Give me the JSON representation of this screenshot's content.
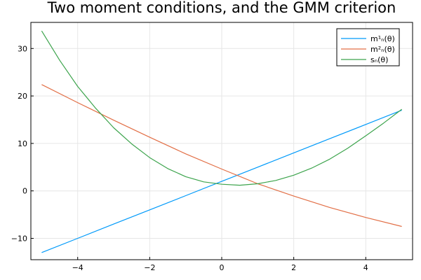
{
  "chart_data": {
    "type": "line",
    "title": "Two moment conditions, and the GMM criterion",
    "xlabel": "",
    "ylabel": "",
    "xlim": [
      -5.3,
      5.3
    ],
    "ylim": [
      -14.5,
      35.5
    ],
    "x_ticks": [
      -4,
      -2,
      0,
      2,
      4
    ],
    "x_tick_labels": [
      "−4",
      "−2",
      "0",
      "2",
      "4"
    ],
    "y_ticks": [
      -10,
      0,
      10,
      20,
      30
    ],
    "y_tick_labels": [
      "−10",
      "0",
      "10",
      "20",
      "30"
    ],
    "grid": true,
    "legend_position": "top-right",
    "series": [
      {
        "name": "m¹ₙ(θ)",
        "color": "#009AFA",
        "x": [
          -5,
          -4,
          -3,
          -2,
          -1,
          0,
          1,
          2,
          3,
          4,
          5
        ],
        "y": [
          -13,
          -10,
          -7,
          -4,
          -1,
          2,
          5,
          8,
          11,
          14,
          17
        ]
      },
      {
        "name": "m²ₙ(θ)",
        "color": "#E26F46",
        "x": [
          -5,
          -4,
          -3,
          -2,
          -1,
          0,
          1,
          2,
          3,
          4,
          5
        ],
        "y": [
          22.4,
          18.6,
          14.9,
          11.3,
          7.8,
          4.6,
          1.5,
          -1.1,
          -3.5,
          -5.6,
          -7.5
        ]
      },
      {
        "name": "sₙ(θ)",
        "color": "#3DA44D",
        "x": [
          -5,
          -4.5,
          -4,
          -3.5,
          -3,
          -2.5,
          -2,
          -1.5,
          -1,
          -0.5,
          0,
          0.5,
          1,
          1.5,
          2,
          2.5,
          3,
          3.5,
          4,
          4.5,
          5
        ],
        "y": [
          33.7,
          27.5,
          22.0,
          17.4,
          13.3,
          9.9,
          7.0,
          4.7,
          3.0,
          1.9,
          1.4,
          1.2,
          1.5,
          2.2,
          3.3,
          4.8,
          6.7,
          9.0,
          11.6,
          14.3,
          17.2
        ]
      }
    ]
  }
}
